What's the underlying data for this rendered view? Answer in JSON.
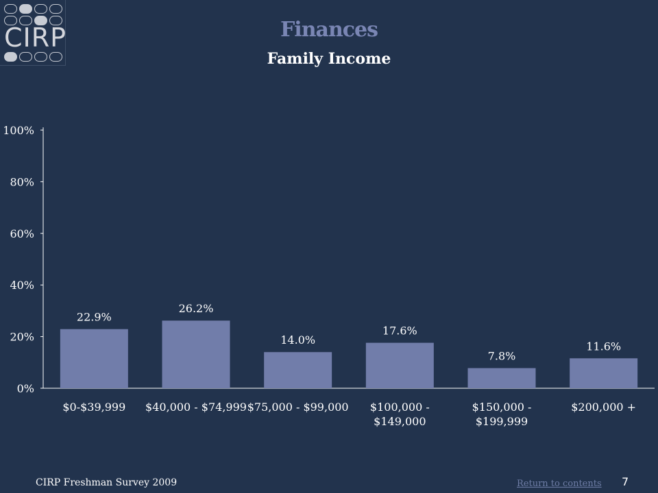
{
  "header": {
    "logo_text": "CIRP",
    "title": "Finances",
    "subtitle": "Family Income"
  },
  "chart_data": {
    "type": "bar",
    "title": "",
    "xlabel": "",
    "ylabel": "",
    "ylim": [
      0,
      100
    ],
    "y_ticks": [
      "0%",
      "20%",
      "40%",
      "60%",
      "80%",
      "100%"
    ],
    "categories": [
      [
        "$0-$39,999"
      ],
      [
        "$40,000 - $74,999"
      ],
      [
        "$75,000 - $99,000"
      ],
      [
        "$100,000 -",
        "$149,000"
      ],
      [
        "$150,000 -",
        "$199,999"
      ],
      [
        "$200,000 +"
      ]
    ],
    "values": [
      22.9,
      26.2,
      14.0,
      17.6,
      7.8,
      11.6
    ],
    "value_labels": [
      "22.9%",
      "26.2%",
      "14.0%",
      "17.6%",
      "7.8%",
      "11.6%"
    ],
    "bar_color": "#717daa",
    "grid": false
  },
  "footer": {
    "survey_label": "CIRP Freshman Survey 2009",
    "return_link": "Return to contents",
    "page_number": "7"
  }
}
